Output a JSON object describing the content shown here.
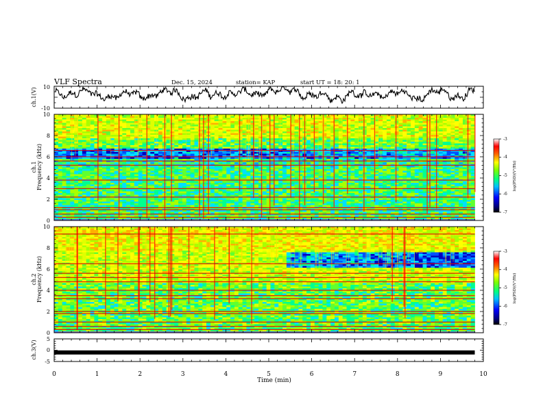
{
  "header": {
    "title": "VLF Spectra",
    "date": "Dec. 15, 2024",
    "station": "station= KAP",
    "start_ut": "start  UT  =   18: 20: 1"
  },
  "chart_data": {
    "type": "heatmap",
    "xlabel": "Time  (min)",
    "xlim": [
      0,
      10
    ],
    "xticks": [
      "0",
      "1",
      "2",
      "3",
      "4",
      "5",
      "6",
      "7",
      "8",
      "9",
      "10"
    ],
    "data_end_min": 9.8,
    "ch1_waveform": {
      "ylabel": "ch.1(V)",
      "ylim": [
        -10,
        10
      ],
      "yticks": [
        "10",
        "-10"
      ]
    },
    "spectrogram_ch1": {
      "ylabel_channel": "ch.1",
      "ylabel": "Frequency  (kHz)",
      "ylim": [
        0,
        10
      ],
      "yticks": [
        "0",
        "2",
        "4",
        "6",
        "8",
        "10"
      ],
      "bright_lines_khz": [
        0.3,
        0.6,
        1.0,
        1.2,
        2.2,
        3.0,
        3.8,
        5.2,
        5.6,
        6.0,
        6.6
      ],
      "colorbar": {
        "label": "log(PSD)(V²/Hz)",
        "ticks": [
          "-3",
          "-4",
          "-5",
          "-6",
          "-7"
        ],
        "range": [
          -7,
          -3
        ]
      }
    },
    "spectrogram_ch2": {
      "ylabel_channel": "ch.2",
      "ylabel": "Frequency  (kHz)",
      "ylim": [
        0,
        10
      ],
      "yticks": [
        "0",
        "2",
        "4",
        "6",
        "8",
        "10"
      ],
      "bright_lines_khz": [
        0.3,
        0.6,
        1.0,
        1.8,
        2.0,
        3.2,
        3.5,
        4.0,
        4.8,
        5.2,
        5.6,
        6.5,
        9.3
      ],
      "colorbar": {
        "label": "log(PSD)(V²/Hz)",
        "ticks": [
          "-3",
          "-4",
          "-5",
          "-6",
          "-7"
        ],
        "range": [
          -7,
          -3
        ]
      }
    },
    "ch3_waveform": {
      "ylabel": "ch.3(V)",
      "ylim": [
        -5,
        5
      ],
      "yticks": [
        "5",
        "0",
        "-5"
      ],
      "level": -1.0
    },
    "colors": {
      "colormap": [
        "#000080",
        "#0000ff",
        "#00a0ff",
        "#00ffff",
        "#00ff80",
        "#80ff00",
        "#ffff00",
        "#ff8000",
        "#ff0000",
        "#ffb0b0",
        "#ffffff"
      ]
    }
  }
}
